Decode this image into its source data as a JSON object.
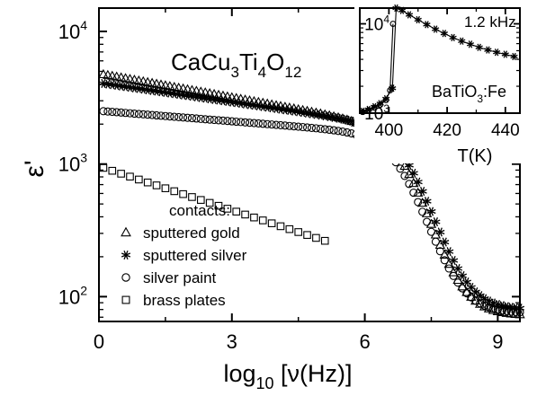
{
  "chart_data": [
    {
      "type": "scatter",
      "title": "",
      "compound": {
        "base": "CaCu",
        "s1": "3",
        "mid1": "Ti",
        "s2": "4",
        "mid2": "O",
        "s3": "12"
      },
      "xlabel": {
        "pre": "log",
        "sub": "10",
        "post": " [ν(Hz)]"
      },
      "ylabel": "ε'",
      "xlim": [
        0,
        9.5
      ],
      "ylim": [
        65,
        15000
      ],
      "yscale": "log",
      "x_ticks": [
        "0",
        "3",
        "6",
        "9"
      ],
      "x_tick_values": [
        0,
        3,
        6,
        9
      ],
      "y_ticks": [
        {
          "base": "10",
          "exp": "2",
          "value": 100
        },
        {
          "base": "10",
          "exp": "3",
          "value": 1000
        },
        {
          "base": "10",
          "exp": "4",
          "value": 10000
        }
      ],
      "legend": {
        "title": "contacts:",
        "placement": "lower-left",
        "entries": [
          "sputtered gold",
          "sputtered silver",
          "silver paint",
          "brass plates"
        ]
      },
      "series": [
        {
          "name": "sputtered gold",
          "marker": "triangle",
          "f0": 4800,
          "plateau_end": 2100,
          "fc": 6.9,
          "w": 0.38,
          "finf": 72
        },
        {
          "name": "sputtered silver",
          "marker": "asterisk",
          "f0": 4100,
          "plateau_end": 2100,
          "fc": 7.0,
          "w": 0.38,
          "finf": 80
        },
        {
          "name": "silver paint",
          "marker": "circle",
          "f0": 2520,
          "plateau_end": 1750,
          "fc": 6.85,
          "w": 0.38,
          "finf": 75
        },
        {
          "name": "brass plates",
          "marker": "square",
          "f0": 960,
          "plateau_end": 210,
          "fc": 12.5,
          "w": 1.0,
          "finf": 70,
          "x_max": 5.2
        }
      ]
    },
    {
      "type": "line",
      "inset": true,
      "annotation_freq": "1.2 kHz",
      "compound": {
        "base": "BaTiO",
        "s1": "3",
        "post": ":Fe"
      },
      "xlabel": "T(K)",
      "xlim": [
        390,
        445
      ],
      "ylim": [
        1000,
        15000
      ],
      "yscale": "log",
      "x_ticks": [
        "400",
        "420",
        "440"
      ],
      "x_tick_values": [
        400,
        420,
        440
      ],
      "y_ticks": [
        {
          "base": "10",
          "exp": "3",
          "value": 1000
        },
        {
          "base": "10",
          "exp": "4",
          "value": 10000
        }
      ],
      "series": [
        {
          "name": "",
          "marker": "circle",
          "x": [
            391,
            393,
            395,
            397,
            399,
            400.4,
            401.4
          ],
          "y": [
            1030,
            1080,
            1150,
            1240,
            1400,
            1800,
            10000
          ]
        },
        {
          "name": "",
          "marker": "asterisk",
          "x": [
            391,
            393,
            395,
            397,
            399,
            401.2,
            402.5,
            404.5,
            407,
            410,
            413,
            416,
            419,
            422,
            425,
            428,
            431,
            434,
            437,
            440,
            443
          ],
          "y": [
            1050,
            1100,
            1180,
            1280,
            1450,
            1900,
            15500,
            14100,
            12600,
            11100,
            9800,
            8700,
            7800,
            7000,
            6400,
            5900,
            5450,
            5100,
            4800,
            4550,
            4300
          ]
        }
      ]
    }
  ]
}
